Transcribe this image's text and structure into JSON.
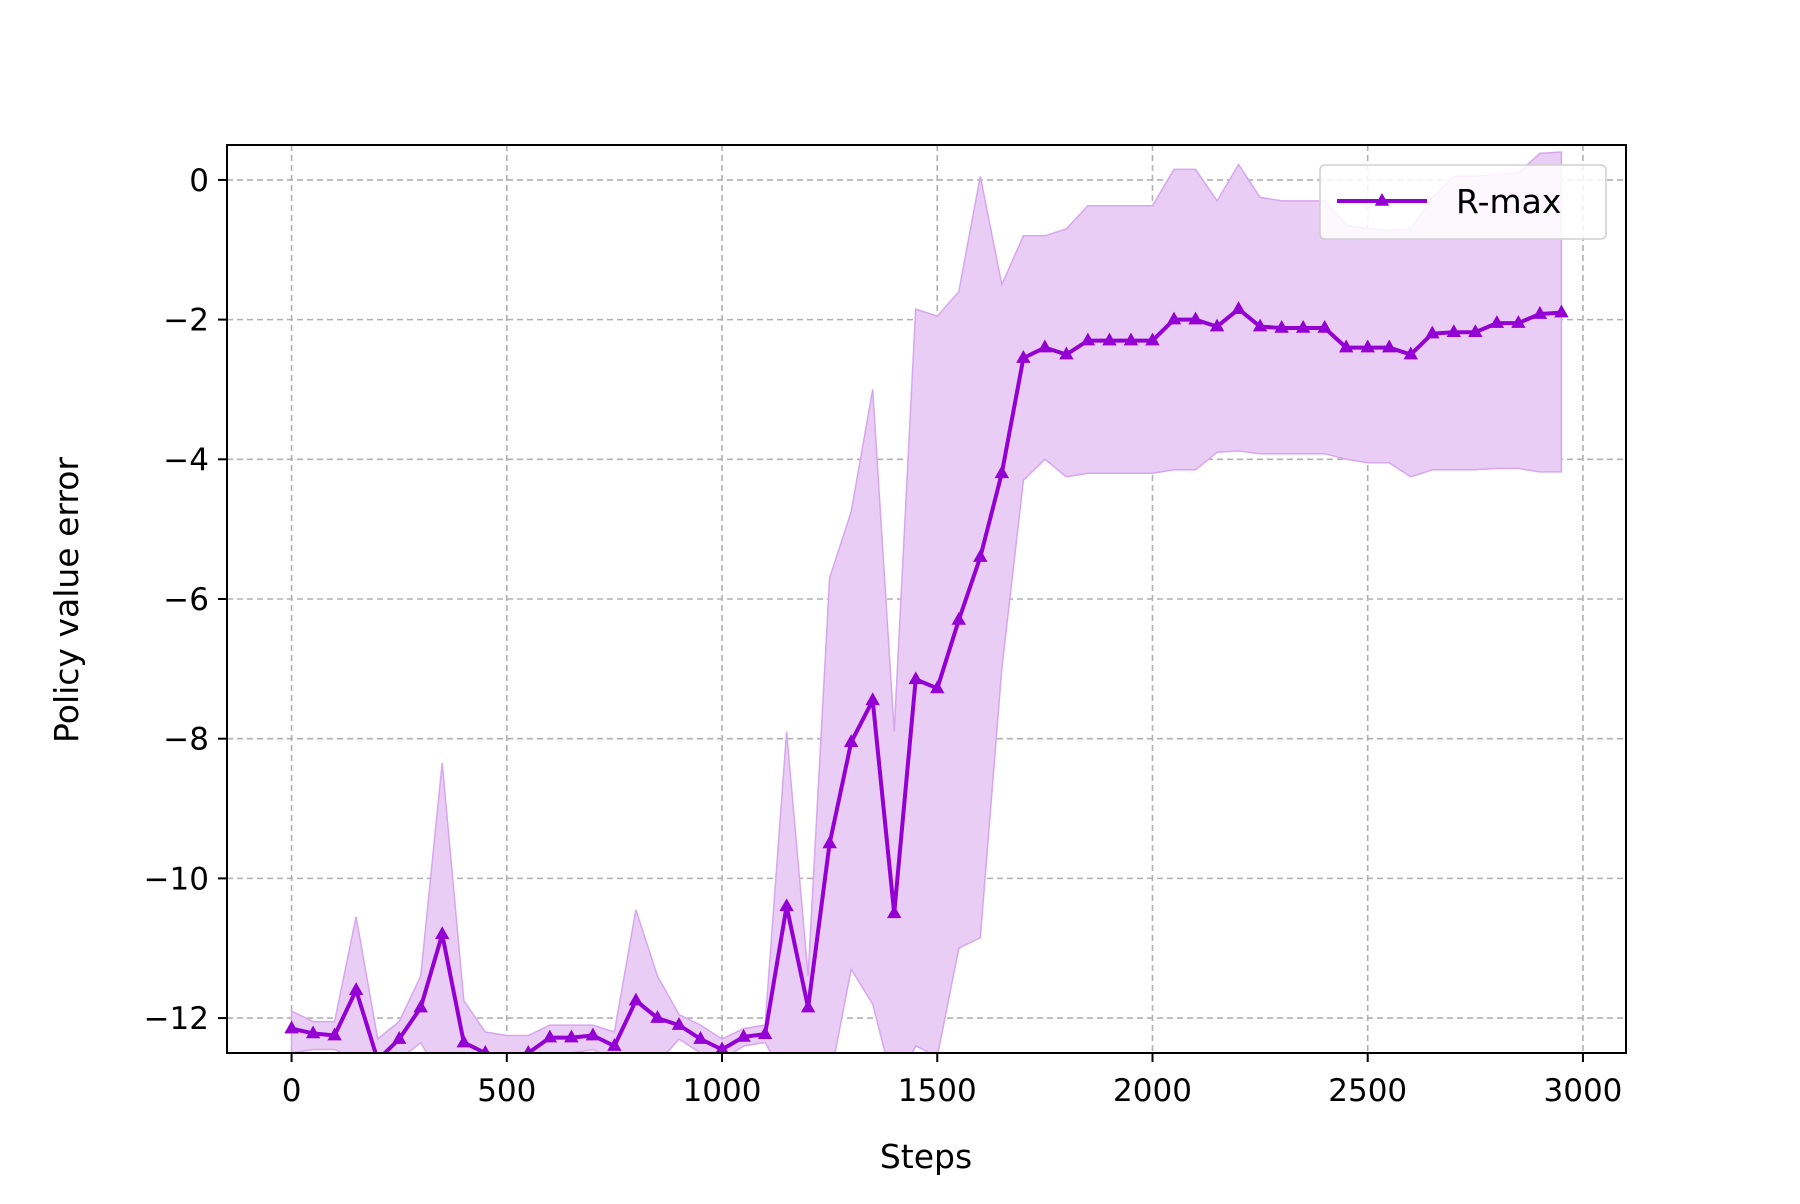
{
  "chart_data": {
    "type": "line",
    "xlabel": "Steps",
    "ylabel": "Policy value error",
    "xlim": [
      -150,
      3100
    ],
    "ylim": [
      -12.5,
      0.5
    ],
    "xticks": [
      0,
      500,
      1000,
      1500,
      2000,
      2500,
      3000
    ],
    "xtick_labels": [
      "0",
      "500",
      "1000",
      "1500",
      "2000",
      "2500",
      "3000"
    ],
    "yticks": [
      0,
      -2,
      -4,
      -6,
      -8,
      -10,
      -12
    ],
    "ytick_labels": [
      "0",
      "−2",
      "−4",
      "−6",
      "−8",
      "−10",
      "−12"
    ],
    "grid": true,
    "legend_position": "top-right",
    "colors": {
      "line": "#9400d3",
      "band": "#e9cdf5",
      "band_edge": "#d7a6ee"
    },
    "series": [
      {
        "name": "R-max",
        "marker": "triangle",
        "x": [
          0,
          50,
          100,
          150,
          200,
          250,
          300,
          350,
          400,
          450,
          500,
          550,
          600,
          650,
          700,
          750,
          800,
          850,
          900,
          950,
          1000,
          1050,
          1100,
          1150,
          1200,
          1250,
          1300,
          1350,
          1400,
          1450,
          1500,
          1550,
          1600,
          1650,
          1700,
          1750,
          1800,
          1850,
          1900,
          1950,
          2000,
          2050,
          2100,
          2150,
          2200,
          2250,
          2300,
          2350,
          2400,
          2450,
          2500,
          2550,
          2600,
          2650,
          2700,
          2750,
          2800,
          2850,
          2900,
          2950
        ],
        "y": [
          -12.15,
          -12.22,
          -12.25,
          -11.6,
          -12.6,
          -12.3,
          -11.85,
          -10.8,
          -12.35,
          -12.5,
          -12.6,
          -12.5,
          -12.28,
          -12.28,
          -12.25,
          -12.4,
          -11.75,
          -12.0,
          -12.1,
          -12.3,
          -12.45,
          -12.27,
          -12.23,
          -10.4,
          -11.85,
          -9.5,
          -8.05,
          -7.45,
          -10.5,
          -7.15,
          -7.28,
          -6.3,
          -5.4,
          -4.2,
          -2.55,
          -2.4,
          -2.5,
          -2.3,
          -2.3,
          -2.3,
          -2.3,
          -2.0,
          -2.0,
          -2.1,
          -1.85,
          -2.1,
          -2.12,
          -2.12,
          -2.12,
          -2.4,
          -2.4,
          -2.4,
          -2.5,
          -2.2,
          -2.18,
          -2.18,
          -2.05,
          -2.05,
          -1.92,
          -1.9
        ],
        "upper": [
          -11.9,
          -12.05,
          -12.05,
          -10.55,
          -12.3,
          -12.05,
          -11.4,
          -8.35,
          -11.75,
          -12.2,
          -12.25,
          -12.25,
          -12.1,
          -12.1,
          -12.1,
          -12.2,
          -10.45,
          -11.4,
          -11.95,
          -12.1,
          -12.3,
          -12.15,
          -12.1,
          -7.9,
          -11.4,
          -5.7,
          -4.75,
          -3.0,
          -7.9,
          -1.85,
          -1.95,
          -1.6,
          0.05,
          -1.5,
          -0.8,
          -0.8,
          -0.7,
          -0.37,
          -0.37,
          -0.37,
          -0.37,
          0.15,
          0.15,
          -0.3,
          0.22,
          -0.25,
          -0.3,
          -0.3,
          -0.3,
          -0.65,
          -0.7,
          -0.72,
          -0.7,
          -0.25,
          0.05,
          0.05,
          0.08,
          0.1,
          0.38,
          0.4
        ],
        "lower": [
          -12.5,
          -12.45,
          -12.45,
          -12.6,
          -12.9,
          -12.6,
          -12.35,
          -12.9,
          -12.9,
          -12.9,
          -12.9,
          -12.8,
          -12.5,
          -12.5,
          -12.45,
          -12.6,
          -12.9,
          -12.65,
          -12.3,
          -12.5,
          -12.6,
          -12.4,
          -12.35,
          -12.9,
          -12.9,
          -12.9,
          -11.3,
          -11.8,
          -13.0,
          -12.4,
          -12.55,
          -11.0,
          -10.85,
          -7.0,
          -4.3,
          -4.0,
          -4.25,
          -4.2,
          -4.2,
          -4.2,
          -4.2,
          -4.15,
          -4.15,
          -3.9,
          -3.88,
          -3.92,
          -3.92,
          -3.92,
          -3.92,
          -4.0,
          -4.05,
          -4.05,
          -4.25,
          -4.15,
          -4.15,
          -4.15,
          -4.13,
          -4.13,
          -4.18,
          -4.18
        ]
      }
    ]
  }
}
